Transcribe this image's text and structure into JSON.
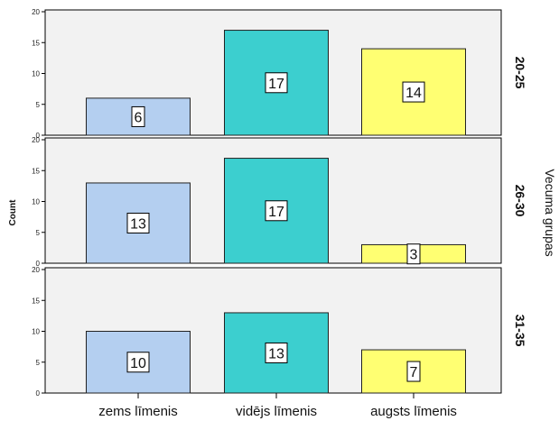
{
  "chart_data": {
    "type": "bar",
    "categories": [
      "zems līmenis",
      "vidējs līmenis",
      "augsts līmenis"
    ],
    "ylabel": "Count",
    "ylim": [
      0,
      20
    ],
    "yticks": [
      0,
      5,
      10,
      15,
      20
    ],
    "facet_title": "Vecuma grupas",
    "panels": [
      {
        "label": "20-25",
        "values": [
          6,
          17,
          14
        ]
      },
      {
        "label": "26-30",
        "values": [
          13,
          17,
          3
        ]
      },
      {
        "label": "31-35",
        "values": [
          10,
          13,
          7
        ]
      }
    ],
    "colors": [
      "#b4cff0",
      "#3ccfcf",
      "#ffff72"
    ],
    "panel_background": "#f2f2f2",
    "grid": false,
    "data_labels": true
  }
}
